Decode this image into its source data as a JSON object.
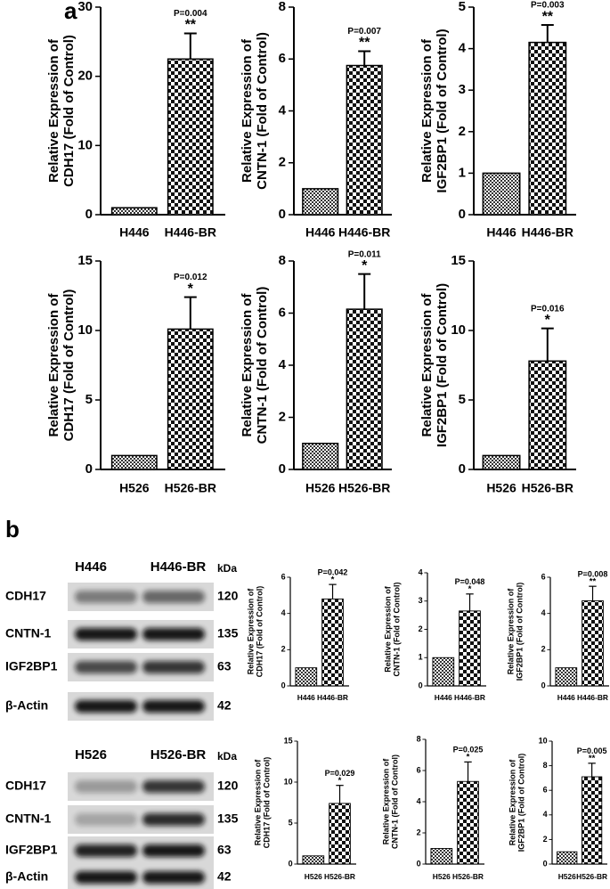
{
  "panel_labels": [
    "a",
    "b"
  ],
  "blots": [
    {
      "columns": [
        "H446",
        "H446-BR"
      ],
      "unit": "kDa",
      "rows": [
        {
          "label": "CDH17",
          "kda": 120
        },
        {
          "label": "CNTN-1",
          "kda": 135
        },
        {
          "label": "IGF2BP1",
          "kda": 63
        },
        {
          "label": "β-Actin",
          "kda": 42
        }
      ]
    },
    {
      "columns": [
        "H526",
        "H526-BR"
      ],
      "unit": "kDa",
      "rows": [
        {
          "label": "CDH17",
          "kda": 120
        },
        {
          "label": "CNTN-1",
          "kda": 135
        },
        {
          "label": "IGF2BP1",
          "kda": 63
        },
        {
          "label": "β-Actin",
          "kda": 42
        }
      ]
    }
  ],
  "chart_data": [
    {
      "type": "bar",
      "ylabel": [
        "Relative Expression of",
        "CDH17 (Fold of Control)"
      ],
      "categories": [
        "H446",
        "H446-BR"
      ],
      "values": [
        1,
        22.5
      ],
      "errors": [
        null,
        3.7
      ],
      "p_label": "P=0.004",
      "significance": "**",
      "ylim": [
        0,
        30
      ],
      "yticks": [
        0,
        10,
        20,
        30
      ]
    },
    {
      "type": "bar",
      "ylabel": [
        "Relative Expression of",
        "CNTN-1 (Fold of Control)"
      ],
      "categories": [
        "H446",
        "H446-BR"
      ],
      "values": [
        1,
        5.75
      ],
      "errors": [
        null,
        0.55
      ],
      "p_label": "P=0.007",
      "significance": "**",
      "ylim": [
        0,
        8
      ],
      "yticks": [
        0,
        2,
        4,
        6,
        8
      ]
    },
    {
      "type": "bar",
      "ylabel": [
        "Relative Expression of",
        "IGF2BP1 (Fold of Control)"
      ],
      "categories": [
        "H446",
        "H446-BR"
      ],
      "values": [
        1,
        4.15
      ],
      "errors": [
        null,
        0.42
      ],
      "p_label": "P=0.003",
      "significance": "**",
      "ylim": [
        0,
        5
      ],
      "yticks": [
        0,
        1,
        2,
        3,
        4,
        5
      ]
    },
    {
      "type": "bar",
      "ylabel": [
        "Relative Expression of",
        "CDH17 (Fold of Control)"
      ],
      "categories": [
        "H526",
        "H526-BR"
      ],
      "values": [
        1,
        10.1
      ],
      "errors": [
        null,
        2.3
      ],
      "p_label": "P=0.012",
      "significance": "*",
      "ylim": [
        0,
        15
      ],
      "yticks": [
        0,
        5,
        10,
        15
      ]
    },
    {
      "type": "bar",
      "ylabel": [
        "Relative Expression of",
        "CNTN-1 (Fold of Control)"
      ],
      "categories": [
        "H526",
        "H526-BR"
      ],
      "values": [
        1,
        6.15
      ],
      "errors": [
        null,
        1.35
      ],
      "p_label": "P=0.011",
      "significance": "*",
      "ylim": [
        0,
        8
      ],
      "yticks": [
        0,
        2,
        4,
        6,
        8
      ]
    },
    {
      "type": "bar",
      "ylabel": [
        "Relative Expression of",
        "IGF2BP1 (Fold of Control)"
      ],
      "categories": [
        "H526",
        "H526-BR"
      ],
      "values": [
        1,
        7.8
      ],
      "errors": [
        null,
        2.35
      ],
      "p_label": "P=0.016",
      "significance": "*",
      "ylim": [
        0,
        15
      ],
      "yticks": [
        0,
        5,
        10,
        15
      ]
    },
    {
      "type": "bar",
      "ylabel": [
        "Relative Expression of",
        "CDH17 (Fold of Control)"
      ],
      "categories": [
        "H446",
        "H446-BR"
      ],
      "values": [
        1,
        4.8
      ],
      "errors": [
        null,
        0.8
      ],
      "p_label": "P=0.042",
      "significance": "*",
      "ylim": [
        0,
        6
      ],
      "yticks": [
        0,
        2,
        4,
        6
      ]
    },
    {
      "type": "bar",
      "ylabel": [
        "Relative Expression of",
        "CNTN-1 (Fold of Control)"
      ],
      "categories": [
        "H446",
        "H446-BR"
      ],
      "values": [
        1,
        2.65
      ],
      "errors": [
        null,
        0.6
      ],
      "p_label": "P=0.048",
      "significance": "*",
      "ylim": [
        0,
        4
      ],
      "yticks": [
        0,
        1,
        2,
        3,
        4
      ]
    },
    {
      "type": "bar",
      "ylabel": [
        "Relative Expression of",
        "IGF2BP1 (Fold of Control)"
      ],
      "categories": [
        "H446",
        "H446-BR"
      ],
      "values": [
        1,
        4.7
      ],
      "errors": [
        null,
        0.8
      ],
      "p_label": "P=0.008",
      "significance": "**",
      "ylim": [
        0,
        6
      ],
      "yticks": [
        0,
        2,
        4,
        6
      ]
    },
    {
      "type": "bar",
      "ylabel": [
        "Relative Expression of",
        "CDH17 (Fold of Control)"
      ],
      "categories": [
        "H526",
        "H526-BR"
      ],
      "values": [
        1,
        7.4
      ],
      "errors": [
        null,
        2.2
      ],
      "p_label": "P=0.029",
      "significance": "*",
      "ylim": [
        0,
        15
      ],
      "yticks": [
        0,
        5,
        10,
        15
      ]
    },
    {
      "type": "bar",
      "ylabel": [
        "Relative Expression of",
        "CNTN-1 (Fold of Control)"
      ],
      "categories": [
        "H526",
        "H526-BR"
      ],
      "values": [
        1,
        5.3
      ],
      "errors": [
        null,
        1.25
      ],
      "p_label": "P=0.025",
      "significance": "*",
      "ylim": [
        0,
        8
      ],
      "yticks": [
        0,
        2,
        4,
        6,
        8
      ]
    },
    {
      "type": "bar",
      "ylabel": [
        "Relative Expression of",
        "IGF2BP1 (Fold of Control)"
      ],
      "categories": [
        "H526",
        "H526-BR"
      ],
      "values": [
        1,
        7.1
      ],
      "errors": [
        null,
        1.1
      ],
      "p_label": "P=0.005",
      "significance": "**",
      "ylim": [
        0,
        10
      ],
      "yticks": [
        0,
        2,
        4,
        6,
        8,
        10
      ]
    }
  ]
}
